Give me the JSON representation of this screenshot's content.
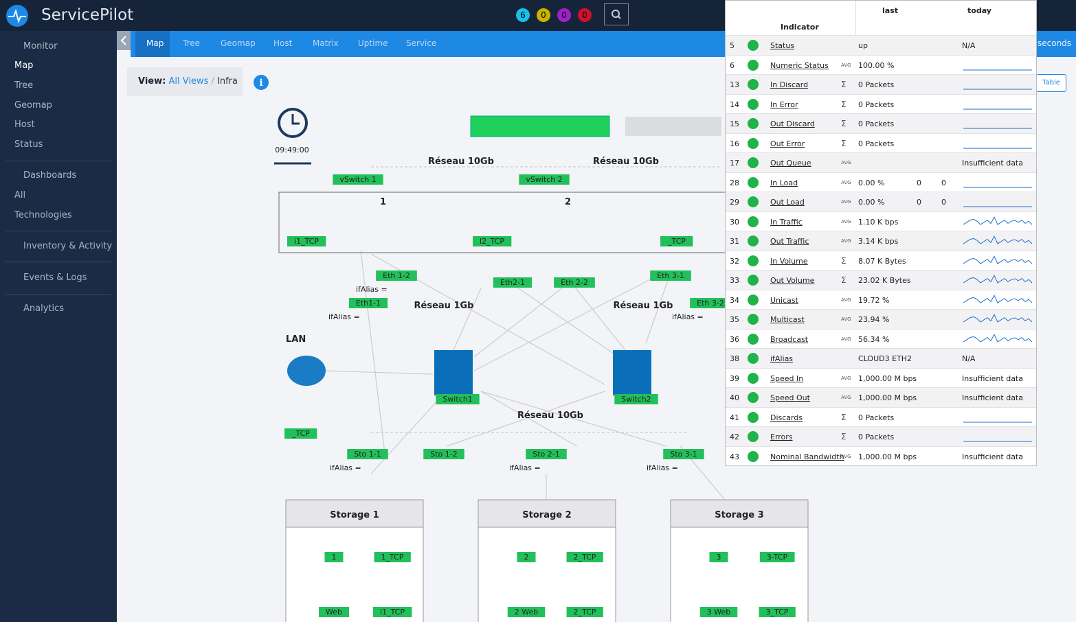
{
  "header": {
    "logo": "ServicePilot",
    "badges": [
      "6",
      "0",
      "0",
      "0"
    ]
  },
  "sidebar": [
    "Monitor",
    "Map",
    "Tree",
    "Geomap",
    "Host",
    "Status",
    "Dashboards",
    "All",
    "Technologies",
    "Inventory & Activity",
    "Events & Logs",
    "Analytics"
  ],
  "tabs": [
    "Map",
    "Tree",
    "Geomap",
    "Host",
    "Matrix",
    "Uptime",
    "Service"
  ],
  "right_bar": {
    "seconds": "seconds",
    "table_button": "Table"
  },
  "breadcrumb": {
    "label": "View:",
    "root": "All Views",
    "separator": "/",
    "current": "Infra"
  },
  "map": {
    "clock": "09:49:00",
    "networks": [
      "Réseau 10Gb",
      "Réseau 10Gb",
      "Réseau 1Gb",
      "Réseau 1Gb",
      "Réseau 10Gb"
    ],
    "vswitches": [
      "vSwitch 1",
      "vSwitch 2"
    ],
    "group_numbers": [
      "1",
      "2"
    ],
    "lan": "LAN",
    "ports": [
      "Eth 1-2",
      "Eth1-1",
      "Eth2-1",
      "Eth 2-2",
      "Eth 3-1",
      "Eth 3-2",
      "Sto 1-1",
      "Sto 1-2",
      "Sto 2-1",
      "Sto 3-1"
    ],
    "ifalias": [
      "ifAlias =",
      "ifAlias =",
      "ifAlias =",
      "ifAlias =",
      "ifAlias =",
      "ifAlias ="
    ],
    "switches": [
      "Switch1",
      "Switch2"
    ],
    "nodes": [
      "i1_TCP",
      "l2_TCP",
      "_TCP",
      "_TCP"
    ],
    "storages": [
      "Storage 1",
      "Storage 2",
      "Storage 3"
    ],
    "storage_nodes": [
      "1",
      "1_TCP",
      "Web",
      "i1_TCP",
      "2",
      "2_TCP",
      "2 Web",
      "2_TCP",
      "3",
      "3-TCP",
      "3 Web",
      "3_TCP"
    ]
  },
  "popup": {
    "columns": {
      "indicator": "Indicator",
      "last": "last",
      "today": "today"
    },
    "rows": [
      {
        "id": 5,
        "name": "Status",
        "last": "up",
        "today": "N/A"
      },
      {
        "id": 6,
        "name": "Numeric Status",
        "agg": "AVG",
        "last": "100.00 %"
      },
      {
        "id": 13,
        "name": "In Discard",
        "agg": "Σ",
        "last": "0 Packets"
      },
      {
        "id": 14,
        "name": "In Error",
        "agg": "Σ",
        "last": "0 Packets"
      },
      {
        "id": 15,
        "name": "Out Discard",
        "agg": "Σ",
        "last": "0 Packets"
      },
      {
        "id": 16,
        "name": "Out Error",
        "agg": "Σ",
        "last": "0 Packets"
      },
      {
        "id": 17,
        "name": "Out Queue",
        "agg": "AVG",
        "today": "Insufficient data"
      },
      {
        "id": 28,
        "name": "In Load",
        "agg": "AVG",
        "last": "0.00 %",
        "min": "0",
        "max": "0"
      },
      {
        "id": 29,
        "name": "Out Load",
        "agg": "AVG",
        "last": "0.00 %",
        "min": "0",
        "max": "0"
      },
      {
        "id": 30,
        "name": "In Traffic",
        "agg": "AVG",
        "last": "1.10 K bps"
      },
      {
        "id": 31,
        "name": "Out Traffic",
        "agg": "AVG",
        "last": "3.14 K bps"
      },
      {
        "id": 32,
        "name": "In Volume",
        "agg": "Σ",
        "last": "8.07 K Bytes"
      },
      {
        "id": 33,
        "name": "Out Volume",
        "agg": "Σ",
        "last": "23.02 K Bytes"
      },
      {
        "id": 34,
        "name": "Unicast",
        "agg": "AVG",
        "last": "19.72 %"
      },
      {
        "id": 35,
        "name": "Multicast",
        "agg": "AVG",
        "last": "23.94 %"
      },
      {
        "id": 36,
        "name": "Broadcast",
        "agg": "AVG",
        "last": "56.34 %"
      },
      {
        "id": 38,
        "name": "ifAlias",
        "last": "CLOUD3 ETH2",
        "today": "N/A"
      },
      {
        "id": 39,
        "name": "Speed In",
        "agg": "AVG",
        "last": "1,000.00 M bps",
        "today": "Insufficient data"
      },
      {
        "id": 40,
        "name": "Speed Out",
        "agg": "AVG",
        "last": "1,000.00 M bps",
        "today": "Insufficient data"
      },
      {
        "id": 41,
        "name": "Discards",
        "agg": "Σ",
        "last": "0 Packets"
      },
      {
        "id": 42,
        "name": "Errors",
        "agg": "Σ",
        "last": "0 Packets"
      },
      {
        "id": 43,
        "name": "Nominal Bandwidth",
        "agg": "AVG",
        "last": "1,000.00 M bps",
        "today": "Insufficient data"
      }
    ]
  }
}
